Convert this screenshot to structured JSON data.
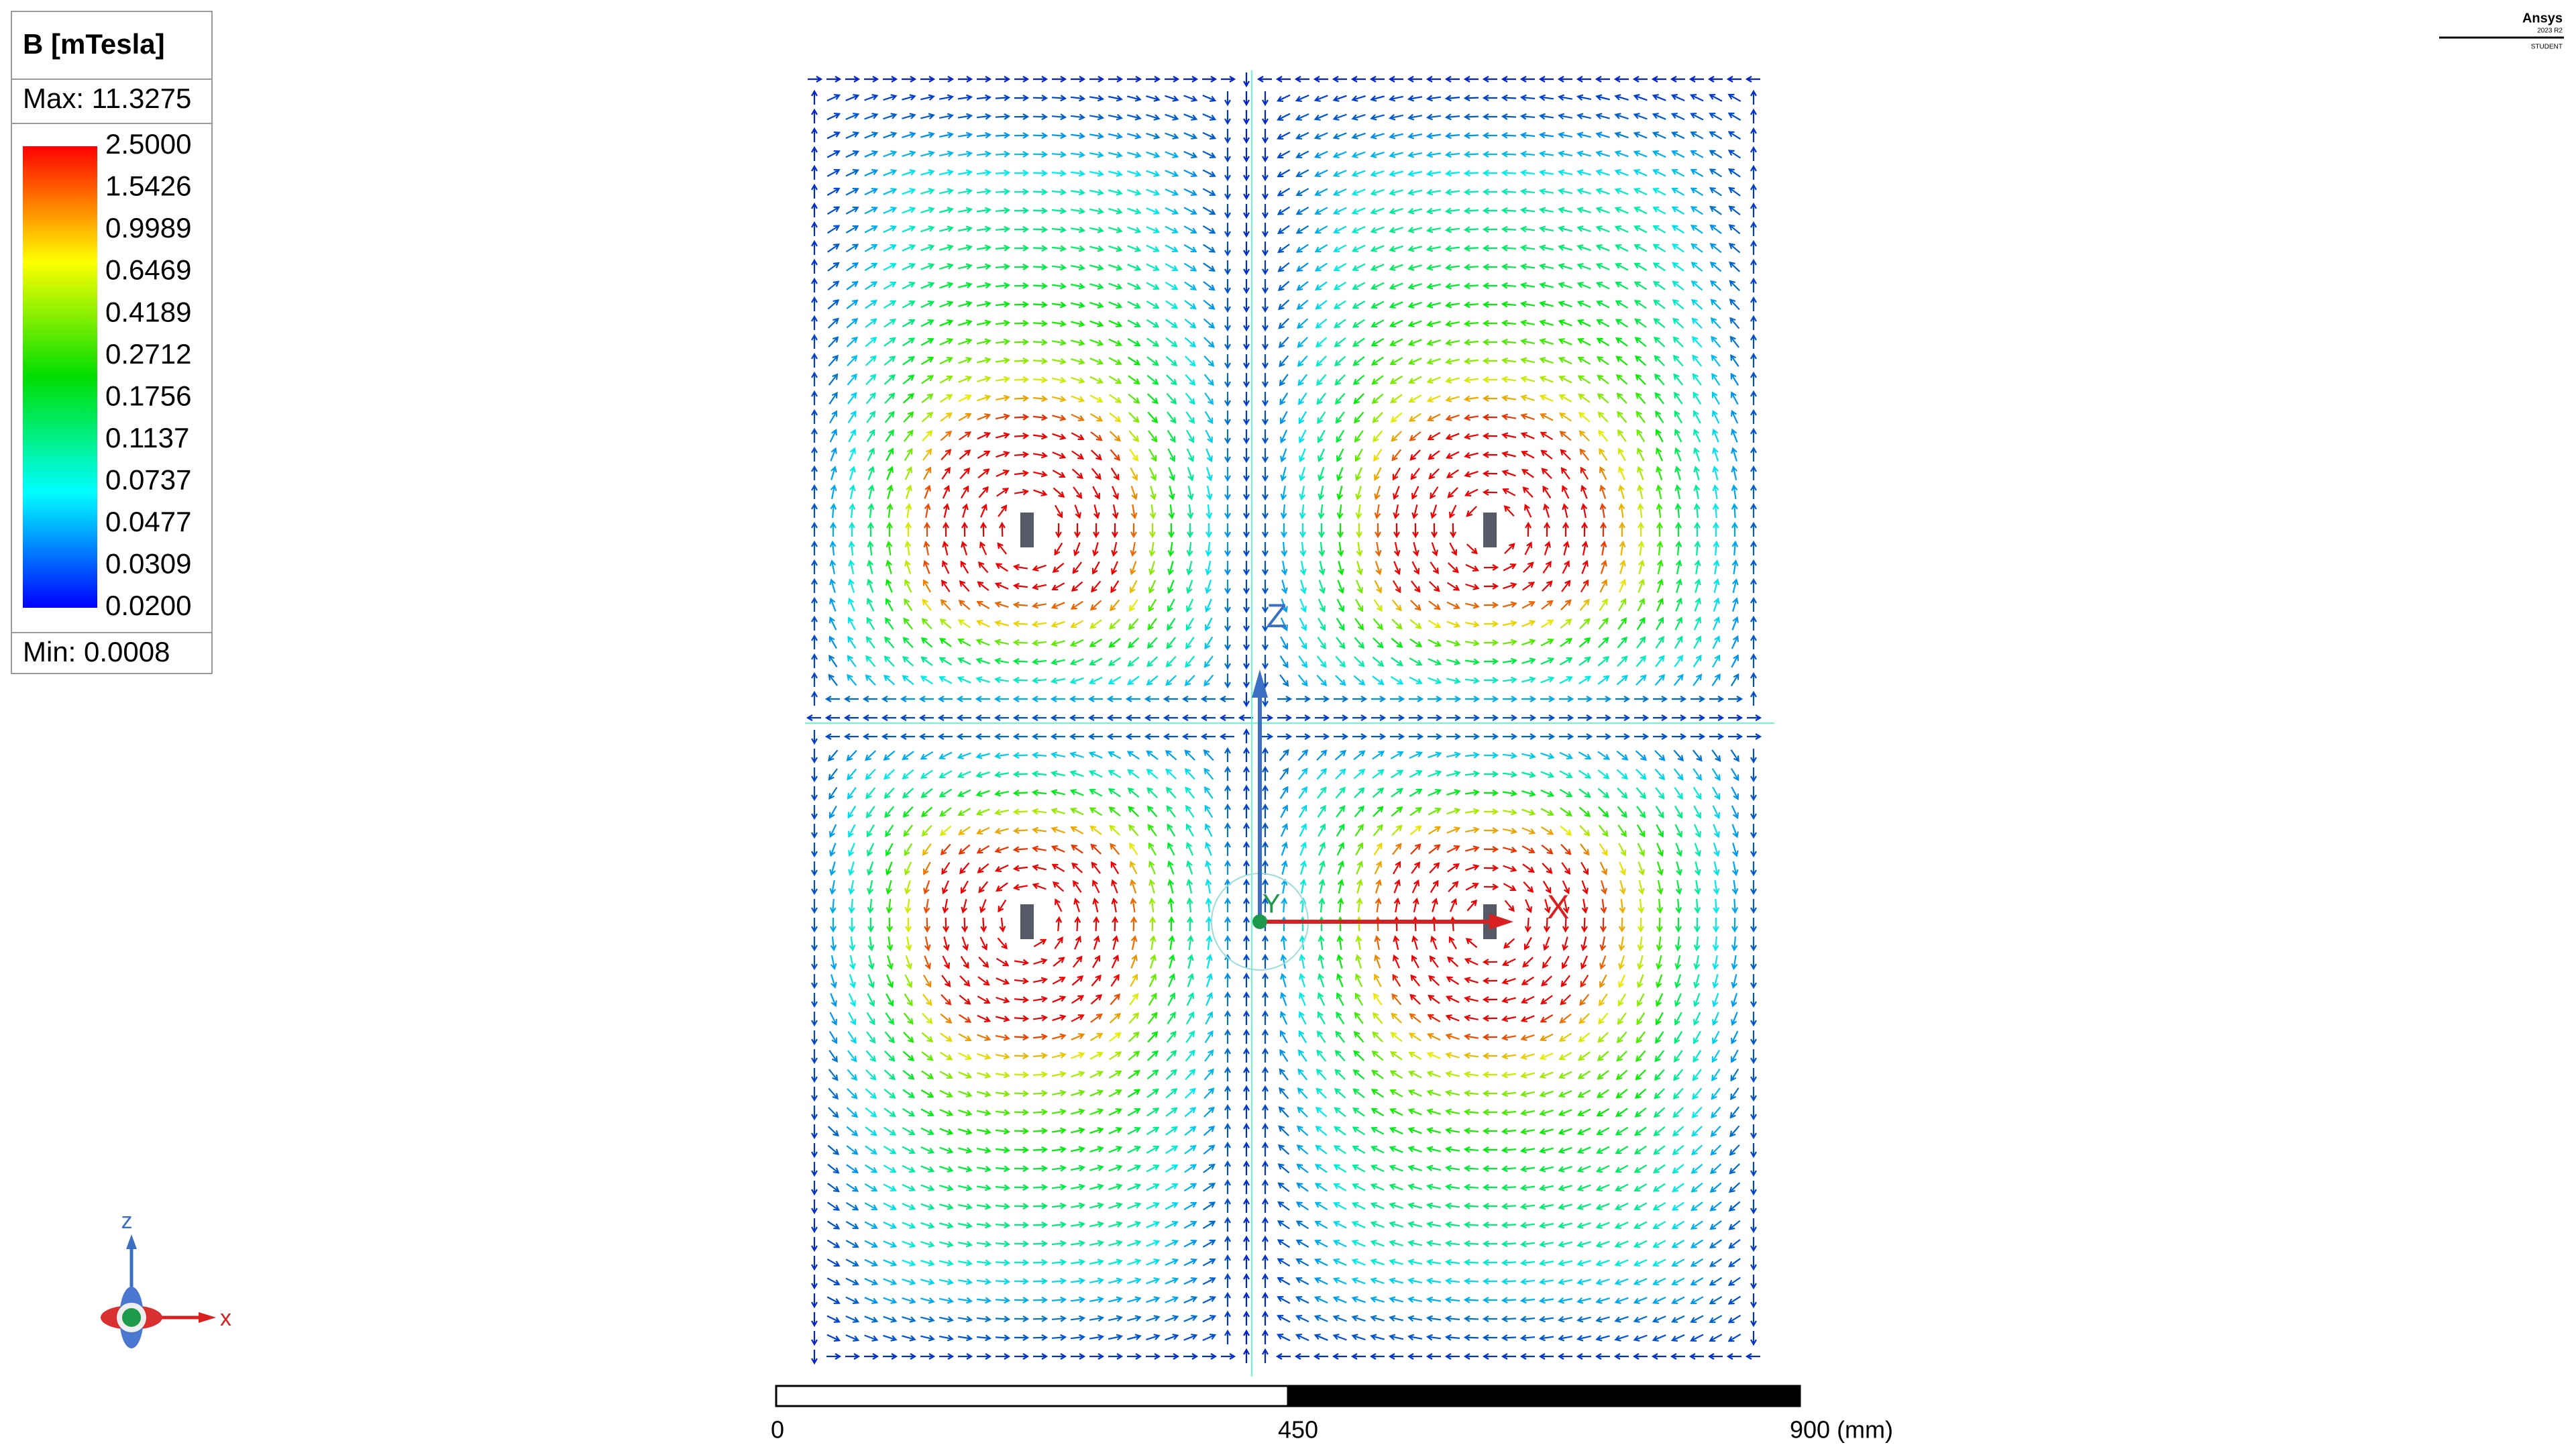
{
  "legend": {
    "title": "B [mTesla]",
    "max": "Max: 11.3275",
    "levels": [
      "2.5000",
      "1.5426",
      "0.9989",
      "0.6469",
      "0.4189",
      "0.2712",
      "0.1756",
      "0.1137",
      "0.0737",
      "0.0477",
      "0.0309",
      "0.0200"
    ],
    "min": "Min: 0.0008"
  },
  "axes": {
    "z": "Z",
    "x": "X",
    "y": "Y"
  },
  "triad": {
    "z": "z",
    "x": "x"
  },
  "scale_bar": {
    "labels": [
      "0",
      "450",
      "900 (mm)"
    ]
  },
  "branding": {
    "product": "Ansys",
    "version": "2023 R2",
    "edition": "STUDENT"
  }
}
